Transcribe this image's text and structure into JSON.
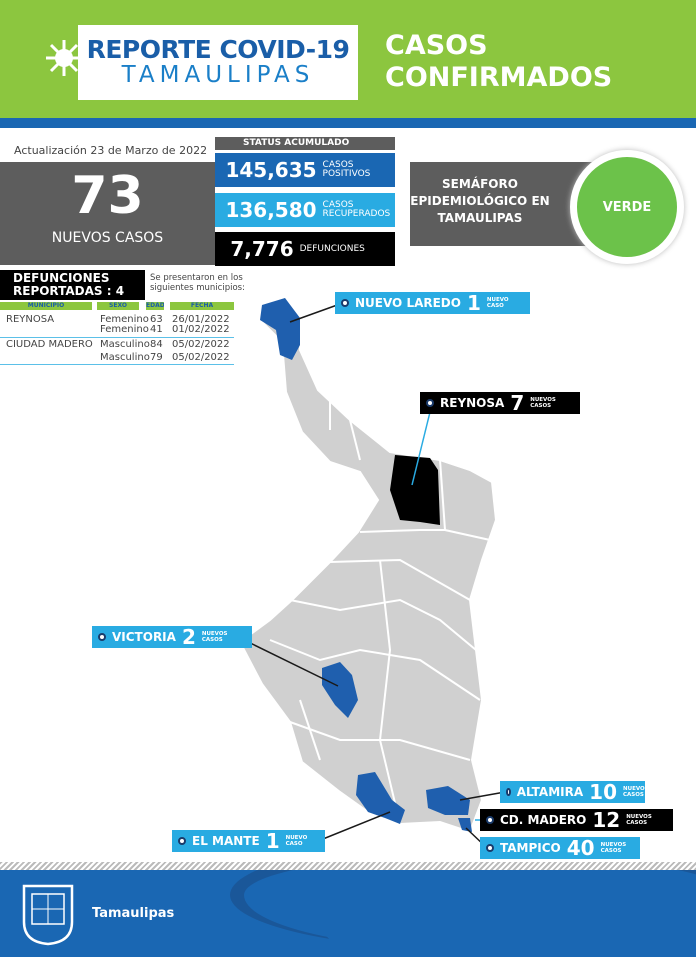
{
  "header": {
    "logo_line1": "REPORTE COVID-19",
    "logo_line2": "TAMAULIPAS",
    "title_line1": "CASOS",
    "title_line2": "CONFIRMADOS"
  },
  "update": "Actualización 23 de Marzo de 2022",
  "new_cases": {
    "value": "73",
    "label": "NUEVOS CASOS"
  },
  "status": {
    "title": "STATUS ACUMULADO",
    "items": [
      {
        "value": "145,635",
        "label": "CASOS POSITIVOS",
        "color": "#1a67b3"
      },
      {
        "value": "136,580",
        "label": "CASOS RECUPERADOS",
        "color": "#29abe2"
      },
      {
        "value": "7,776",
        "label": "DEFUNCIONES",
        "color": "#000000"
      }
    ]
  },
  "semaforo": {
    "label": "SEMÁFORO EPIDEMIOLÓGICO EN TAMAULIPAS",
    "value": "VERDE",
    "color": "#6cc24a"
  },
  "deaths": {
    "title_line1": "DEFUNCIONES",
    "title_line2": "REPORTADAS : 4",
    "note": "Se presentaron en los siguientes municipios:",
    "columns": [
      "MUNICIPIO",
      "SEXO",
      "EDAD",
      "FECHA DEFUNCIÓN"
    ],
    "rows": [
      [
        "REYNOSA",
        "Femenino",
        "63",
        "26/01/2022"
      ],
      [
        "",
        "Femenino",
        "41",
        "01/02/2022"
      ],
      [
        "CIUDAD MADERO",
        "Masculino",
        "84",
        "05/02/2022"
      ],
      [
        "",
        "Masculino",
        "79",
        "05/02/2022"
      ]
    ]
  },
  "map_labels": [
    {
      "name": "NUEVO LAREDO",
      "count": "1",
      "unit": "NUEVO CASO"
    },
    {
      "name": "REYNOSA",
      "count": "7",
      "unit": "NUEVOS CASOS"
    },
    {
      "name": "VICTORIA",
      "count": "2",
      "unit": "NUEVOS CASOS"
    },
    {
      "name": "ALTAMIRA",
      "count": "10",
      "unit": "NUEVOS CASOS"
    },
    {
      "name": "CD. MADERO",
      "count": "12",
      "unit": "NUEVOS CASOS"
    },
    {
      "name": "TAMPICO",
      "count": "40",
      "unit": "NUEVOS CASOS"
    },
    {
      "name": "EL MANTE",
      "count": "1",
      "unit": "NUEVO CASO"
    }
  ],
  "colors": {
    "green": "#8cc63f",
    "blue": "#1a67b3",
    "light_blue": "#29abe2",
    "map_gray": "#d0d0d0",
    "highlight": "#1f5fae"
  },
  "footer": {
    "text": "Tamaulipas"
  }
}
